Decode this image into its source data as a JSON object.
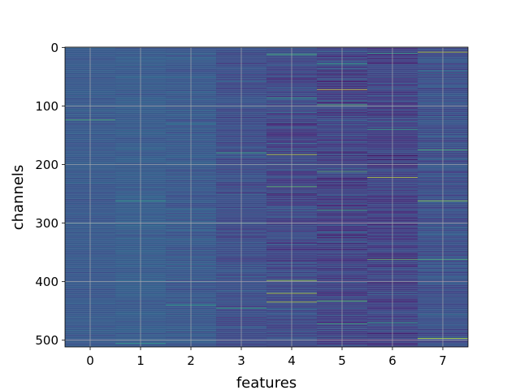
{
  "chart_data": {
    "type": "heatmap",
    "title": "",
    "xlabel": "features",
    "ylabel": "channels",
    "x_categories": [
      "0",
      "1",
      "2",
      "3",
      "4",
      "5",
      "6",
      "7"
    ],
    "y_ticks": [
      0,
      100,
      200,
      300,
      400,
      500
    ],
    "y_tick_labels": [
      "0",
      "100",
      "200",
      "300",
      "400",
      "500"
    ],
    "n_rows": 512,
    "n_cols": 8,
    "xlim": [
      -0.5,
      7.5
    ],
    "ylim": [
      511.5,
      -0.5
    ],
    "y_axis_inverted": true,
    "grid": true,
    "colormap": "viridis",
    "value_range": [
      0,
      1
    ],
    "column_value_profile": [
      {
        "feature": "0",
        "typical_mean": 0.28,
        "spread": 0.06
      },
      {
        "feature": "1",
        "typical_mean": 0.29,
        "spread": 0.07
      },
      {
        "feature": "2",
        "typical_mean": 0.28,
        "spread": 0.09
      },
      {
        "feature": "3",
        "typical_mean": 0.24,
        "spread": 0.11
      },
      {
        "feature": "4",
        "typical_mean": 0.22,
        "spread": 0.15
      },
      {
        "feature": "5",
        "typical_mean": 0.2,
        "spread": 0.17
      },
      {
        "feature": "6",
        "typical_mean": 0.2,
        "spread": 0.15
      },
      {
        "feature": "7",
        "typical_mean": 0.25,
        "spread": 0.13
      }
    ],
    "bright_cells": [
      {
        "feature": "0",
        "channel": 124,
        "value": 0.7
      },
      {
        "feature": "1",
        "channel": 262,
        "value": 0.6
      },
      {
        "feature": "1",
        "channel": 505,
        "value": 0.6
      },
      {
        "feature": "2",
        "channel": 440,
        "value": 0.6
      },
      {
        "feature": "3",
        "channel": 180,
        "value": 0.65
      },
      {
        "feature": "3",
        "channel": 300,
        "value": 0.6
      },
      {
        "feature": "3",
        "channel": 445,
        "value": 0.65
      },
      {
        "feature": "4",
        "channel": 12,
        "value": 0.7
      },
      {
        "feature": "4",
        "channel": 86,
        "value": 0.6
      },
      {
        "feature": "4",
        "channel": 183,
        "value": 0.9
      },
      {
        "feature": "4",
        "channel": 238,
        "value": 0.75
      },
      {
        "feature": "4",
        "channel": 398,
        "value": 0.85
      },
      {
        "feature": "4",
        "channel": 420,
        "value": 0.9
      },
      {
        "feature": "4",
        "channel": 435,
        "value": 0.9
      },
      {
        "feature": "5",
        "channel": 28,
        "value": 0.6
      },
      {
        "feature": "5",
        "channel": 72,
        "value": 0.95
      },
      {
        "feature": "5",
        "channel": 98,
        "value": 0.7
      },
      {
        "feature": "5",
        "channel": 212,
        "value": 0.7
      },
      {
        "feature": "5",
        "channel": 278,
        "value": 0.65
      },
      {
        "feature": "5",
        "channel": 433,
        "value": 0.75
      },
      {
        "feature": "5",
        "channel": 472,
        "value": 0.65
      },
      {
        "feature": "6",
        "channel": 10,
        "value": 0.6
      },
      {
        "feature": "6",
        "channel": 140,
        "value": 0.6
      },
      {
        "feature": "6",
        "channel": 222,
        "value": 0.9
      },
      {
        "feature": "6",
        "channel": 362,
        "value": 0.75
      },
      {
        "feature": "6",
        "channel": 470,
        "value": 0.6
      },
      {
        "feature": "7",
        "channel": 8,
        "value": 0.9
      },
      {
        "feature": "7",
        "channel": 175,
        "value": 0.7
      },
      {
        "feature": "7",
        "channel": 262,
        "value": 0.85
      },
      {
        "feature": "7",
        "channel": 362,
        "value": 0.7
      },
      {
        "feature": "7",
        "channel": 497,
        "value": 0.9
      }
    ],
    "dark_cells": [
      {
        "feature": "4",
        "channel": 130,
        "value": 0.05
      },
      {
        "feature": "4",
        "channel": 250,
        "value": 0.05
      },
      {
        "feature": "5",
        "channel": 40,
        "value": 0.04
      },
      {
        "feature": "5",
        "channel": 180,
        "value": 0.05
      },
      {
        "feature": "5",
        "channel": 320,
        "value": 0.04
      },
      {
        "feature": "6",
        "channel": 115,
        "value": 0.04
      },
      {
        "feature": "6",
        "channel": 185,
        "value": 0.02
      },
      {
        "feature": "6",
        "channel": 192,
        "value": 0.02
      },
      {
        "feature": "6",
        "channel": 198,
        "value": 0.03
      },
      {
        "feature": "6",
        "channel": 402,
        "value": 0.04
      }
    ]
  }
}
